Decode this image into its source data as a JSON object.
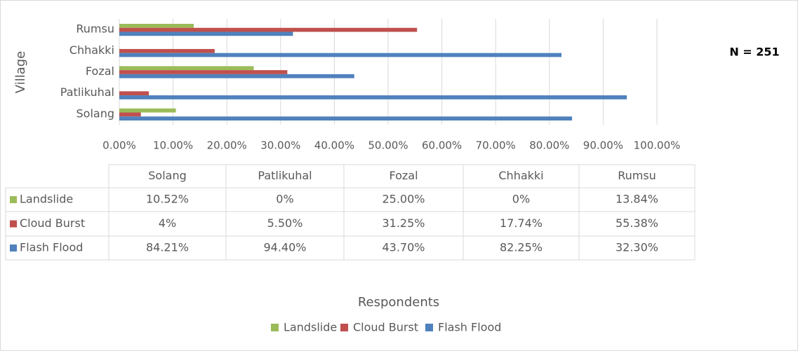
{
  "chart_data": {
    "type": "bar",
    "orientation": "horizontal",
    "y_label": "Village",
    "x_label": "Respondents",
    "annotation": "N = 251",
    "categories": [
      "Solang",
      "Patlikuhal",
      "Fozal",
      "Chhakki",
      "Rumsu"
    ],
    "series": [
      {
        "name": "Landslide",
        "color": "#9bbb59",
        "values": [
          10.52,
          0,
          25,
          0,
          13.84
        ],
        "value_labels": [
          "10.52%",
          "0%",
          "25.00%",
          "0%",
          "13.84%"
        ]
      },
      {
        "name": "Cloud Burst",
        "color": "#c0504d",
        "values": [
          4,
          5.5,
          31.25,
          17.74,
          55.38
        ],
        "value_labels": [
          "4%",
          "5.50%",
          "31.25%",
          "17.74%",
          "55.38%"
        ]
      },
      {
        "name": "Flash Flood",
        "color": "#4f81bd",
        "values": [
          84.21,
          94.4,
          43.7,
          82.25,
          32.3
        ],
        "value_labels": [
          "84.21%",
          "94.40%",
          "43.70%",
          "82.25%",
          "32.30%"
        ]
      }
    ],
    "xlim": [
      0,
      100
    ],
    "xticks": [
      {
        "value": 0,
        "label": "0.00%"
      },
      {
        "value": 10,
        "label": "10.00%"
      },
      {
        "value": 20,
        "label": "20.00%"
      },
      {
        "value": 30,
        "label": "30.00%"
      },
      {
        "value": 40,
        "label": "40.00%"
      },
      {
        "value": 50,
        "label": "50.00%"
      },
      {
        "value": 60,
        "label": "60.00%"
      },
      {
        "value": 70,
        "label": "70.00%"
      },
      {
        "value": 80,
        "label": "80.00%"
      },
      {
        "value": 90,
        "label": "90.00%"
      },
      {
        "value": 100,
        "label": "100.00%"
      }
    ],
    "grid": true,
    "legend": "bottom",
    "data_table": true
  }
}
